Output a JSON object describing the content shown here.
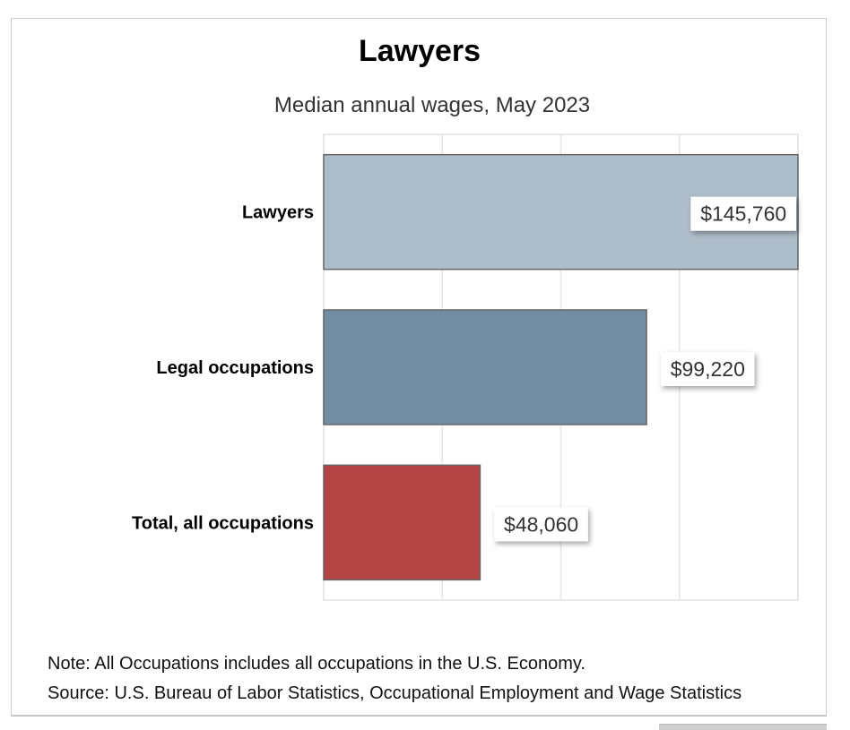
{
  "title": "Lawyers",
  "subtitle": "Median annual wages, May 2023",
  "notes": {
    "note": "Note: All Occupations includes all occupations in the U.S. Economy.",
    "source": "Source: U.S. Bureau of Labor Statistics, Occupational Employment and Wage Statistics"
  },
  "colors": {
    "lawyers": "#aebdca",
    "legal": "#728ca3",
    "total": "#b54545",
    "grid": "#e6e6e6"
  },
  "chart_data": {
    "type": "bar",
    "orientation": "horizontal",
    "title": "Lawyers",
    "subtitle": "Median annual wages, May 2023",
    "categories": [
      "Lawyers",
      "Legal occupations",
      "Total, all occupations"
    ],
    "values": [
      145760,
      99220,
      48060
    ],
    "data_labels": [
      "$145,760",
      "$99,220",
      "$48,060"
    ],
    "xlim": [
      0,
      145760
    ],
    "xlabel": "",
    "ylabel": "",
    "grid": true,
    "legend": "none"
  }
}
